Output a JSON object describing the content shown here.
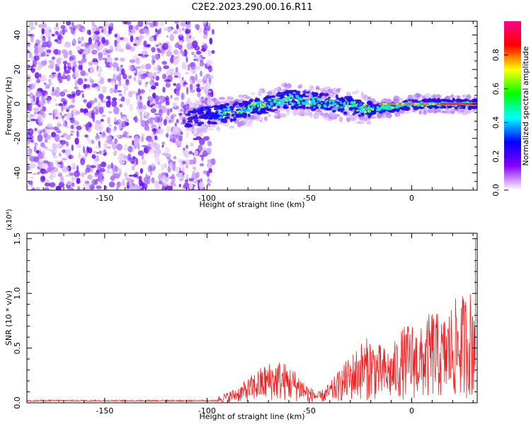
{
  "title": "C2E2.2023.290.00.16.R11",
  "chart_data": [
    {
      "type": "heatmap",
      "xlabel": "Height of straight line (km)",
      "ylabel": "Frequency (Hz)",
      "xlim": [
        -188,
        32
      ],
      "ylim": [
        -50,
        48
      ],
      "xticks": [
        -150,
        -100,
        -50,
        0
      ],
      "yticks": [
        40,
        20,
        0,
        -20,
        -40
      ],
      "xtick_labels": [
        "-150",
        "-100",
        "-50",
        "0"
      ],
      "ytick_labels": [
        "40",
        "20",
        "0",
        "-20",
        "-40"
      ],
      "colorbar": {
        "label": "Normalized spectral amplitude",
        "range": [
          0,
          1
        ],
        "ticks": [
          0,
          0.2,
          0.4,
          0.6,
          0.8
        ],
        "tick_labels": [
          "0.0",
          "0.2",
          "0.4",
          "0.6",
          "0.8"
        ],
        "colors": [
          "#ffffff",
          "#8800ff",
          "#0000ff",
          "#00ffff",
          "#00ff00",
          "#ffff00",
          "#ff0000",
          "#ff0088"
        ]
      },
      "noise_region": {
        "x": [
          -188,
          -97
        ],
        "y": [
          -50,
          48
        ],
        "amplitude": 0.25
      },
      "signal_trace": {
        "x": [
          -110,
          -100,
          -90,
          -80,
          -70,
          -60,
          -50,
          -40,
          -30,
          -20,
          -10,
          0,
          10,
          20,
          32
        ],
        "y": [
          -8,
          -7,
          -5,
          -3,
          0,
          3,
          2,
          0,
          -1,
          -3,
          -2,
          0,
          0,
          0,
          0
        ],
        "amplitude": [
          0.2,
          0.3,
          0.35,
          0.4,
          0.45,
          0.45,
          0.5,
          0.45,
          0.45,
          0.5,
          0.55,
          0.7,
          0.8,
          0.9,
          0.9
        ]
      },
      "grid": false
    },
    {
      "type": "line",
      "xlabel": "Height of straight line (km)",
      "ylabel": "SNR (10 * v/v)",
      "scale_label": "(x10⁴)",
      "xlim": [
        -188,
        32
      ],
      "ylim": [
        0,
        1.55
      ],
      "xticks": [
        -150,
        -100,
        -50,
        0
      ],
      "yticks": [
        0,
        0.5,
        1.0,
        1.5
      ],
      "xtick_labels": [
        "-150",
        "-100",
        "-50",
        "0"
      ],
      "ytick_labels": [
        "0.0",
        "0.5",
        "1.0",
        "1.5"
      ],
      "color": "#ee2222",
      "series": [
        {
          "x": [
            -188,
            -170,
            -150,
            -130,
            -110,
            -100,
            -95,
            -90,
            -85,
            -80,
            -75,
            -70,
            -65,
            -60,
            -55,
            -50,
            -45,
            -40,
            -35,
            -30,
            -25,
            -20,
            -15,
            -10,
            -5,
            0,
            5,
            10,
            15,
            20,
            25,
            30,
            32
          ],
          "y": [
            0.02,
            0.02,
            0.02,
            0.02,
            0.02,
            0.02,
            0.05,
            0.08,
            0.12,
            0.18,
            0.25,
            0.3,
            0.32,
            0.28,
            0.22,
            0.12,
            0.08,
            0.15,
            0.25,
            0.35,
            0.45,
            0.5,
            0.42,
            0.4,
            0.55,
            0.6,
            0.55,
            0.7,
            0.62,
            0.75,
            0.8,
            0.85,
            1.5
          ]
        }
      ],
      "grid": false
    }
  ]
}
